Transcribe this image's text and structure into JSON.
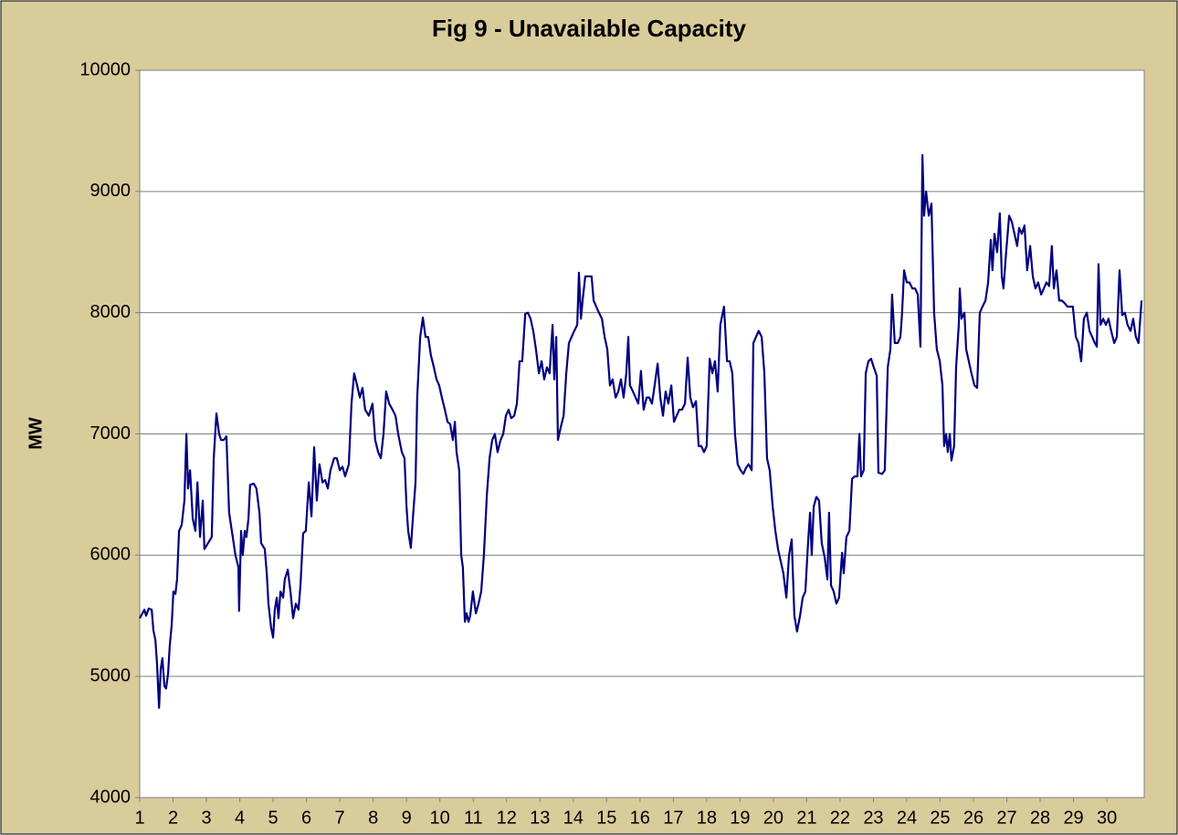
{
  "chart_data": {
    "type": "line",
    "title": "Fig 9 - Unavailable Capacity",
    "y_label": "MW",
    "color": "#000080",
    "grid": true,
    "xlim": [
      1,
      31.12
    ],
    "xticks": [
      1,
      2,
      3,
      4,
      5,
      6,
      7,
      8,
      9,
      10,
      11,
      12,
      13,
      14,
      15,
      16,
      17,
      18,
      19,
      20,
      21,
      22,
      23,
      24,
      25,
      26,
      27,
      28,
      29,
      30
    ],
    "ylim": [
      4000,
      10000
    ],
    "yticks": [
      4000,
      5000,
      6000,
      7000,
      8000,
      9000,
      10000
    ],
    "x": [
      1.0,
      1.14,
      1.19,
      1.27,
      1.36,
      1.41,
      1.47,
      1.52,
      1.58,
      1.63,
      1.68,
      1.74,
      1.79,
      1.85,
      1.9,
      1.96,
      2.01,
      2.07,
      2.12,
      2.18,
      2.26,
      2.34,
      2.4,
      2.45,
      2.51,
      2.59,
      2.67,
      2.73,
      2.81,
      2.89,
      2.94,
      3.05,
      3.16,
      3.22,
      3.3,
      3.38,
      3.44,
      3.52,
      3.6,
      3.68,
      3.79,
      3.87,
      3.96,
      3.98,
      4.04,
      4.09,
      4.15,
      4.2,
      4.26,
      4.31,
      4.42,
      4.5,
      4.59,
      4.64,
      4.75,
      4.81,
      4.86,
      4.94,
      5.0,
      5.05,
      5.11,
      5.16,
      5.22,
      5.3,
      5.35,
      5.44,
      5.52,
      5.6,
      5.68,
      5.76,
      5.82,
      5.9,
      5.98,
      6.07,
      6.15,
      6.23,
      6.31,
      6.39,
      6.48,
      6.56,
      6.64,
      6.72,
      6.83,
      6.91,
      7.0,
      7.08,
      7.16,
      7.27,
      7.35,
      7.43,
      7.52,
      7.6,
      7.68,
      7.76,
      7.87,
      7.98,
      8.06,
      8.15,
      8.23,
      8.31,
      8.39,
      8.48,
      8.58,
      8.67,
      8.75,
      8.86,
      8.94,
      9.0,
      9.05,
      9.13,
      9.19,
      9.27,
      9.32,
      9.41,
      9.49,
      9.57,
      9.65,
      9.73,
      9.82,
      9.9,
      9.98,
      10.06,
      10.15,
      10.23,
      10.31,
      10.39,
      10.45,
      10.5,
      10.58,
      10.64,
      10.69,
      10.75,
      10.8,
      10.86,
      10.91,
      10.99,
      11.08,
      11.16,
      11.24,
      11.32,
      11.41,
      11.49,
      11.57,
      11.65,
      11.73,
      11.82,
      11.9,
      11.98,
      12.06,
      12.14,
      12.23,
      12.31,
      12.39,
      12.47,
      12.56,
      12.64,
      12.72,
      12.8,
      12.88,
      12.97,
      13.05,
      13.13,
      13.21,
      13.29,
      13.38,
      13.43,
      13.49,
      13.54,
      13.62,
      13.71,
      13.79,
      13.87,
      13.95,
      14.03,
      14.12,
      14.17,
      14.23,
      14.28,
      14.36,
      14.44,
      14.55,
      14.61,
      14.69,
      14.77,
      14.86,
      14.94,
      15.02,
      15.1,
      15.18,
      15.27,
      15.35,
      15.43,
      15.51,
      15.59,
      15.65,
      15.7,
      15.79,
      15.87,
      15.95,
      16.03,
      16.11,
      16.2,
      16.28,
      16.36,
      16.44,
      16.53,
      16.61,
      16.69,
      16.77,
      16.85,
      16.94,
      17.02,
      17.1,
      17.18,
      17.26,
      17.35,
      17.43,
      17.51,
      17.59,
      17.68,
      17.76,
      17.84,
      17.92,
      18.0,
      18.09,
      18.17,
      18.25,
      18.33,
      18.41,
      18.52,
      18.61,
      18.69,
      18.77,
      18.85,
      18.93,
      19.02,
      19.1,
      19.18,
      19.26,
      19.35,
      19.4,
      19.48,
      19.56,
      19.65,
      19.73,
      19.81,
      19.89,
      19.98,
      20.06,
      20.14,
      20.22,
      20.3,
      20.39,
      20.47,
      20.55,
      20.63,
      20.71,
      20.8,
      20.88,
      20.96,
      21.04,
      21.1,
      21.15,
      21.21,
      21.29,
      21.37,
      21.45,
      21.54,
      21.62,
      21.67,
      21.73,
      21.81,
      21.89,
      21.97,
      22.06,
      22.11,
      22.19,
      22.28,
      22.36,
      22.44,
      22.52,
      22.58,
      22.63,
      22.71,
      22.77,
      22.85,
      22.93,
      23.01,
      23.1,
      23.15,
      23.26,
      23.34,
      23.43,
      23.51,
      23.56,
      23.64,
      23.73,
      23.81,
      23.86,
      23.92,
      24.0,
      24.08,
      24.17,
      24.25,
      24.33,
      24.41,
      24.47,
      24.52,
      24.58,
      24.66,
      24.74,
      24.82,
      24.9,
      24.99,
      25.07,
      25.12,
      25.18,
      25.23,
      25.29,
      25.34,
      25.42,
      25.48,
      25.56,
      25.59,
      25.64,
      25.73,
      25.78,
      25.86,
      25.94,
      26.03,
      26.11,
      26.19,
      26.27,
      26.36,
      26.44,
      26.52,
      26.57,
      26.63,
      26.71,
      26.79,
      26.85,
      26.9,
      26.98,
      27.07,
      27.15,
      27.23,
      27.31,
      27.37,
      27.45,
      27.53,
      27.61,
      27.7,
      27.78,
      27.86,
      27.94,
      28.03,
      28.11,
      28.19,
      28.27,
      28.35,
      28.41,
      28.49,
      28.57,
      28.65,
      28.73,
      28.82,
      28.9,
      28.98,
      29.07,
      29.15,
      29.23,
      29.31,
      29.4,
      29.48,
      29.56,
      29.64,
      29.7,
      29.75,
      29.81,
      29.89,
      29.97,
      30.05,
      30.13,
      30.22,
      30.3,
      30.38,
      30.46,
      30.54,
      30.62,
      30.71,
      30.79,
      30.87,
      30.95,
      31.04
    ],
    "values": [
      5480,
      5550,
      5500,
      5560,
      5550,
      5380,
      5300,
      5100,
      4740,
      5060,
      5150,
      4920,
      4900,
      5020,
      5250,
      5430,
      5700,
      5680,
      5800,
      6200,
      6250,
      6450,
      7000,
      6550,
      6700,
      6300,
      6200,
      6600,
      6150,
      6450,
      6050,
      6100,
      6150,
      6800,
      7170,
      7000,
      6950,
      6950,
      6980,
      6350,
      6150,
      6000,
      5900,
      5540,
      6200,
      6000,
      6200,
      6150,
      6300,
      6580,
      6590,
      6550,
      6350,
      6100,
      6050,
      5850,
      5600,
      5400,
      5320,
      5550,
      5650,
      5480,
      5700,
      5650,
      5800,
      5880,
      5700,
      5480,
      5600,
      5550,
      5750,
      6180,
      6200,
      6600,
      6320,
      6890,
      6450,
      6750,
      6600,
      6620,
      6550,
      6700,
      6800,
      6800,
      6700,
      6730,
      6650,
      6750,
      7250,
      7500,
      7400,
      7300,
      7380,
      7200,
      7150,
      7250,
      6950,
      6850,
      6800,
      7000,
      7350,
      7250,
      7200,
      7150,
      7000,
      6850,
      6800,
      6400,
      6200,
      6060,
      6300,
      6600,
      7300,
      7800,
      7960,
      7800,
      7800,
      7650,
      7550,
      7450,
      7400,
      7300,
      7200,
      7100,
      7080,
      6950,
      7100,
      6850,
      6700,
      6000,
      5900,
      5450,
      5520,
      5450,
      5500,
      5700,
      5520,
      5600,
      5700,
      6000,
      6500,
      6800,
      6950,
      7000,
      6850,
      6950,
      7000,
      7150,
      7200,
      7130,
      7150,
      7250,
      7600,
      7600,
      7990,
      8000,
      7950,
      7850,
      7700,
      7500,
      7600,
      7450,
      7550,
      7500,
      7900,
      7450,
      7800,
      6950,
      7050,
      7150,
      7500,
      7750,
      7800,
      7850,
      7900,
      8330,
      7950,
      8100,
      8300,
      8300,
      8300,
      8100,
      8050,
      8000,
      7950,
      7800,
      7700,
      7400,
      7450,
      7300,
      7350,
      7450,
      7300,
      7500,
      7800,
      7400,
      7350,
      7300,
      7250,
      7520,
      7200,
      7300,
      7300,
      7250,
      7400,
      7580,
      7300,
      7150,
      7350,
      7250,
      7400,
      7100,
      7150,
      7200,
      7200,
      7250,
      7630,
      7300,
      7220,
      7270,
      6900,
      6900,
      6850,
      6900,
      7620,
      7500,
      7600,
      7350,
      7900,
      8050,
      7600,
      7600,
      7500,
      7000,
      6750,
      6700,
      6670,
      6720,
      6750,
      6700,
      7750,
      7800,
      7850,
      7800,
      7500,
      6800,
      6700,
      6400,
      6200,
      6050,
      5950,
      5850,
      5650,
      6000,
      6130,
      5500,
      5370,
      5500,
      5650,
      5700,
      6100,
      6350,
      6000,
      6400,
      6480,
      6450,
      6100,
      5980,
      5800,
      6350,
      5750,
      5700,
      5600,
      5650,
      6020,
      5850,
      6150,
      6200,
      6630,
      6650,
      6650,
      7000,
      6650,
      6700,
      7500,
      7600,
      7620,
      7550,
      7480,
      6680,
      6670,
      6700,
      7550,
      7700,
      8150,
      7750,
      7750,
      7800,
      8000,
      8350,
      8250,
      8250,
      8200,
      8200,
      8150,
      7720,
      9300,
      8800,
      9000,
      8800,
      8900,
      8000,
      7700,
      7600,
      7400,
      6900,
      7000,
      6850,
      7000,
      6780,
      6900,
      7550,
      7900,
      8200,
      7950,
      8000,
      7700,
      7600,
      7500,
      7400,
      7380,
      8000,
      8050,
      8100,
      8250,
      8600,
      8350,
      8650,
      8500,
      8820,
      8300,
      8200,
      8500,
      8800,
      8750,
      8650,
      8550,
      8700,
      8650,
      8720,
      8350,
      8550,
      8300,
      8200,
      8250,
      8150,
      8200,
      8250,
      8220,
      8550,
      8200,
      8350,
      8100,
      8100,
      8080,
      8050,
      8050,
      8050,
      7800,
      7750,
      7600,
      7950,
      8000,
      7850,
      7800,
      7750,
      7720,
      8400,
      7900,
      7950,
      7900,
      7950,
      7850,
      7750,
      7800,
      8350,
      7980,
      8000,
      7900,
      7850,
      7950,
      7800,
      7750,
      8100
    ]
  }
}
